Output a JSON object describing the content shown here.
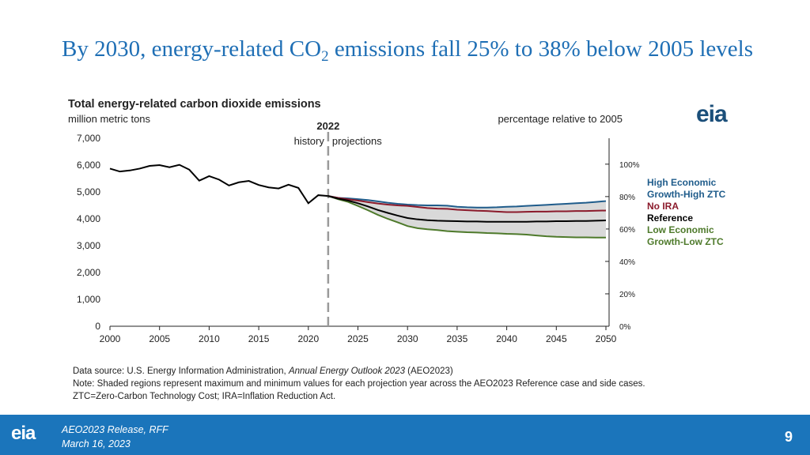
{
  "slide": {
    "title_parts": [
      "By 2030, energy-related CO",
      "2",
      " emissions fall 25% to 38% below 2005 levels"
    ],
    "logo": "eia",
    "source_parts": [
      "Data source: U.S. Energy Information Administration, ",
      "Annual Energy Outlook 2023",
      " (AEO2023)"
    ],
    "note": "Note: Shaded regions represent maximum and minimum values for each projection year across the AEO2023 Reference case and side cases. ZTC=Zero-Carbon Technology Cost; IRA=Inflation Reduction Act.",
    "footer_lines": [
      "AEO2023 Release, RFF",
      "March 16, 2023"
    ],
    "page_number": "9"
  },
  "chart_data": {
    "type": "line",
    "title": "Total energy-related carbon dioxide emissions",
    "y_label": "million metric tons",
    "y2_label": "percentage relative to 2005",
    "divider": {
      "value": 2022,
      "label": "2022",
      "left_text": "history",
      "right_text": "projections"
    },
    "band_fill": "#d9d9d9",
    "x": [
      2000,
      2001,
      2002,
      2003,
      2004,
      2005,
      2006,
      2007,
      2008,
      2009,
      2010,
      2011,
      2012,
      2013,
      2014,
      2015,
      2016,
      2017,
      2018,
      2019,
      2020,
      2021,
      2022,
      2023,
      2024,
      2025,
      2026,
      2027,
      2028,
      2029,
      2030,
      2031,
      2032,
      2033,
      2034,
      2035,
      2036,
      2037,
      2038,
      2039,
      2040,
      2041,
      2042,
      2043,
      2044,
      2045,
      2046,
      2047,
      2048,
      2049,
      2050
    ],
    "xlim": [
      2000,
      2050
    ],
    "xticks": [
      2000,
      2005,
      2010,
      2015,
      2020,
      2025,
      2030,
      2035,
      2040,
      2045,
      2050
    ],
    "ylim": [
      0,
      7000
    ],
    "yticks": [
      0,
      {
        "value": 1000,
        "label": "1,000"
      },
      {
        "value": 2000,
        "label": "2,000"
      },
      {
        "value": 3000,
        "label": "3,000"
      },
      {
        "value": 4000,
        "label": "4,000"
      },
      {
        "value": 5000,
        "label": "5,000"
      },
      {
        "value": 6000,
        "label": "6,000"
      },
      {
        "value": 7000,
        "label": "7,000"
      }
    ],
    "y2lim": [
      0,
      116
    ],
    "y2ticks": [
      {
        "value": 0,
        "label": "0%"
      },
      {
        "value": 20,
        "label": "20%"
      },
      {
        "value": 40,
        "label": "40%"
      },
      {
        "value": 60,
        "label": "60%"
      },
      {
        "value": 80,
        "label": "80%"
      },
      {
        "value": 100,
        "label": "100%"
      }
    ],
    "series": [
      {
        "color": "#000000",
        "values": [
          5870,
          5760,
          5800,
          5870,
          5970,
          6000,
          5920,
          6010,
          5830,
          5420,
          5590,
          5460,
          5240,
          5360,
          5410,
          5260,
          5170,
          5130,
          5270,
          5150,
          4580,
          4880,
          4850,
          null,
          null,
          null,
          null,
          null,
          null,
          null,
          null,
          null,
          null,
          null,
          null,
          null,
          null,
          null,
          null,
          null,
          null,
          null,
          null,
          null,
          null,
          null,
          null,
          null,
          null,
          null,
          null
        ]
      },
      {
        "name": "High Economic Growth-High ZTC",
        "color": "#1f5c8b",
        "values": [
          null,
          null,
          null,
          null,
          null,
          null,
          null,
          null,
          null,
          null,
          null,
          null,
          null,
          null,
          null,
          null,
          null,
          null,
          null,
          null,
          null,
          null,
          4850,
          4780,
          4760,
          4730,
          4700,
          4650,
          4600,
          4560,
          4530,
          4510,
          4500,
          4500,
          4490,
          4450,
          4430,
          4420,
          4420,
          4430,
          4450,
          4460,
          4480,
          4500,
          4520,
          4540,
          4560,
          4580,
          4600,
          4630,
          4660
        ]
      },
      {
        "name": "No IRA",
        "color": "#8b1a2b",
        "values": [
          null,
          null,
          null,
          null,
          null,
          null,
          null,
          null,
          null,
          null,
          null,
          null,
          null,
          null,
          null,
          null,
          null,
          null,
          null,
          null,
          null,
          null,
          4850,
          4780,
          4730,
          4680,
          4620,
          4570,
          4530,
          4500,
          4480,
          4440,
          4400,
          4380,
          4370,
          4340,
          4320,
          4300,
          4290,
          4270,
          4250,
          4250,
          4260,
          4270,
          4270,
          4280,
          4280,
          4290,
          4290,
          4300,
          4310
        ]
      },
      {
        "name": "Reference",
        "color": "#000000",
        "values": [
          null,
          null,
          null,
          null,
          null,
          null,
          null,
          null,
          null,
          null,
          null,
          null,
          null,
          null,
          null,
          null,
          null,
          null,
          null,
          null,
          null,
          null,
          4850,
          4750,
          4680,
          4580,
          4460,
          4330,
          4220,
          4120,
          4030,
          3980,
          3950,
          3930,
          3920,
          3910,
          3900,
          3900,
          3890,
          3890,
          3890,
          3890,
          3890,
          3900,
          3900,
          3910,
          3910,
          3920,
          3920,
          3930,
          3940
        ]
      },
      {
        "name": "Low Economic Growth-Low ZTC",
        "color": "#4e7a2b",
        "values": [
          null,
          null,
          null,
          null,
          null,
          null,
          null,
          null,
          null,
          null,
          null,
          null,
          null,
          null,
          null,
          null,
          null,
          null,
          null,
          null,
          null,
          null,
          4850,
          4730,
          4630,
          4480,
          4320,
          4150,
          4000,
          3870,
          3730,
          3650,
          3610,
          3580,
          3540,
          3520,
          3500,
          3490,
          3470,
          3460,
          3440,
          3430,
          3410,
          3380,
          3350,
          3330,
          3320,
          3310,
          3310,
          3300,
          3300
        ]
      }
    ]
  }
}
